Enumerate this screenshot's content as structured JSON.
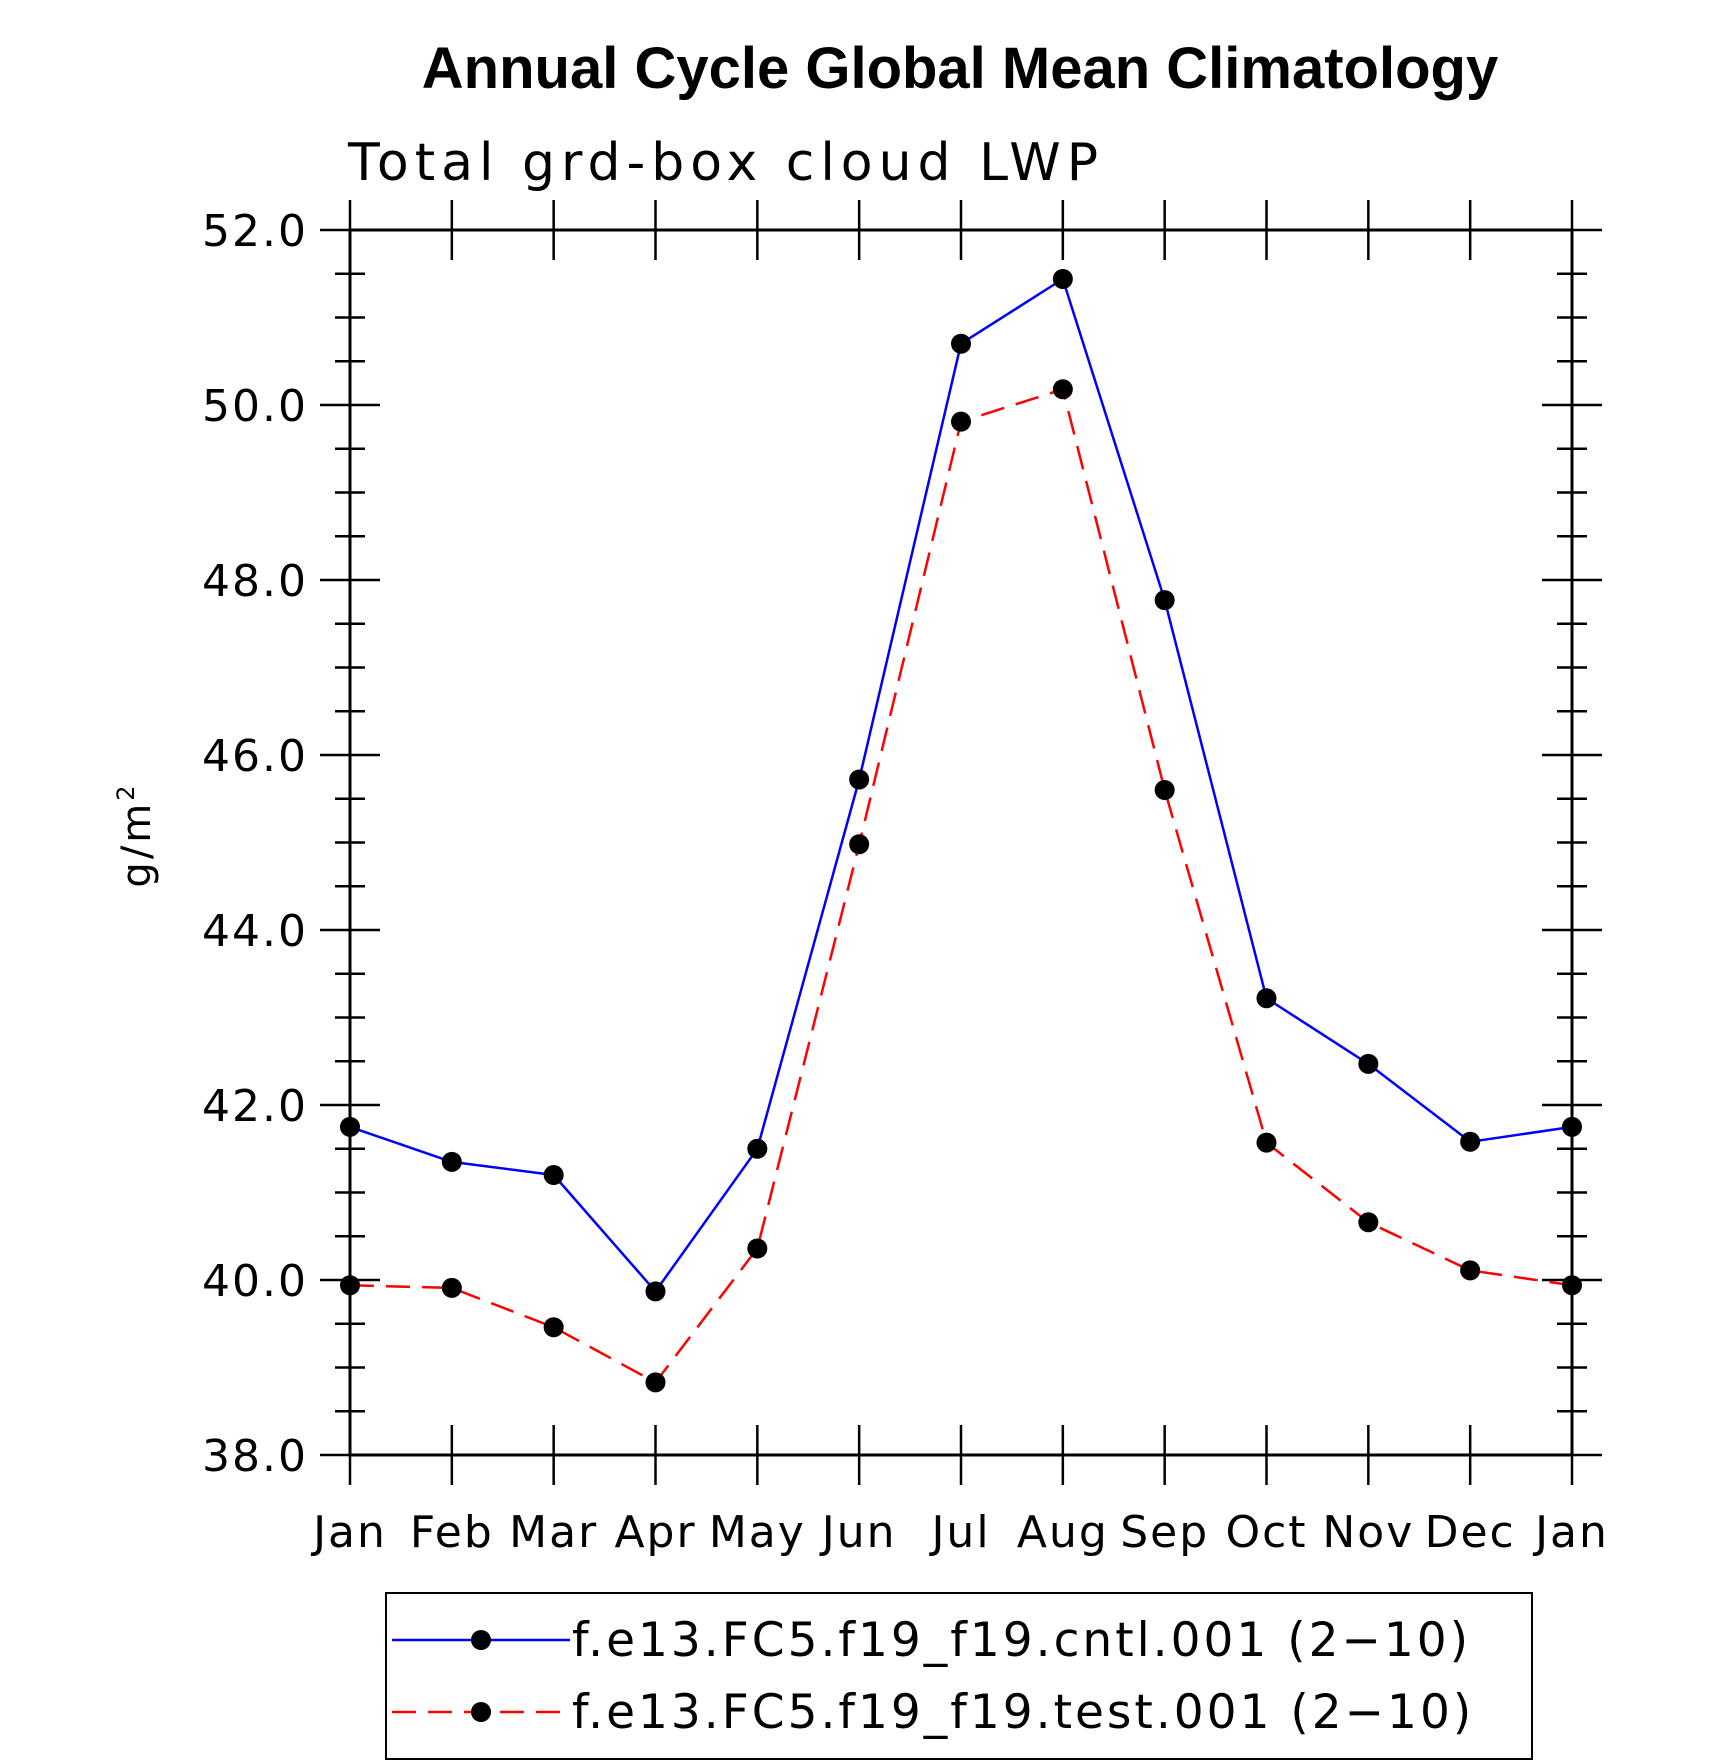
{
  "chart_data": {
    "type": "line",
    "title": "Annual Cycle Global Mean Climatology",
    "subtitle": "Total grd-box cloud LWP",
    "xlabel": "",
    "ylabel": "g/m",
    "ylabel_superscript": "2",
    "categories": [
      "Jan",
      "Feb",
      "Mar",
      "Apr",
      "May",
      "Jun",
      "Jul",
      "Aug",
      "Sep",
      "Oct",
      "Nov",
      "Dec",
      "Jan"
    ],
    "ylim": [
      38.0,
      52.0
    ],
    "yticks": [
      "38.0",
      "40.0",
      "42.0",
      "44.0",
      "46.0",
      "48.0",
      "50.0",
      "52.0"
    ],
    "y_minor_step": 0.5,
    "series": [
      {
        "name": "f.e13.FC5.f19_f19.cntl.001 (2−10)",
        "color": "#0000ff",
        "dash": "solid",
        "values": [
          41.75,
          41.35,
          41.2,
          39.87,
          41.5,
          45.72,
          50.7,
          51.44,
          47.77,
          43.22,
          42.47,
          41.58,
          41.75
        ]
      },
      {
        "name": "f.e13.FC5.f19_f19.test.001 (2−10)",
        "color": "#ff0000",
        "dash": "dashed",
        "values": [
          39.94,
          39.91,
          39.46,
          38.83,
          40.36,
          44.98,
          49.81,
          50.18,
          45.6,
          41.57,
          40.66,
          40.11,
          39.94
        ]
      }
    ],
    "marker_color": "#000000",
    "legend_position": "bottom"
  }
}
